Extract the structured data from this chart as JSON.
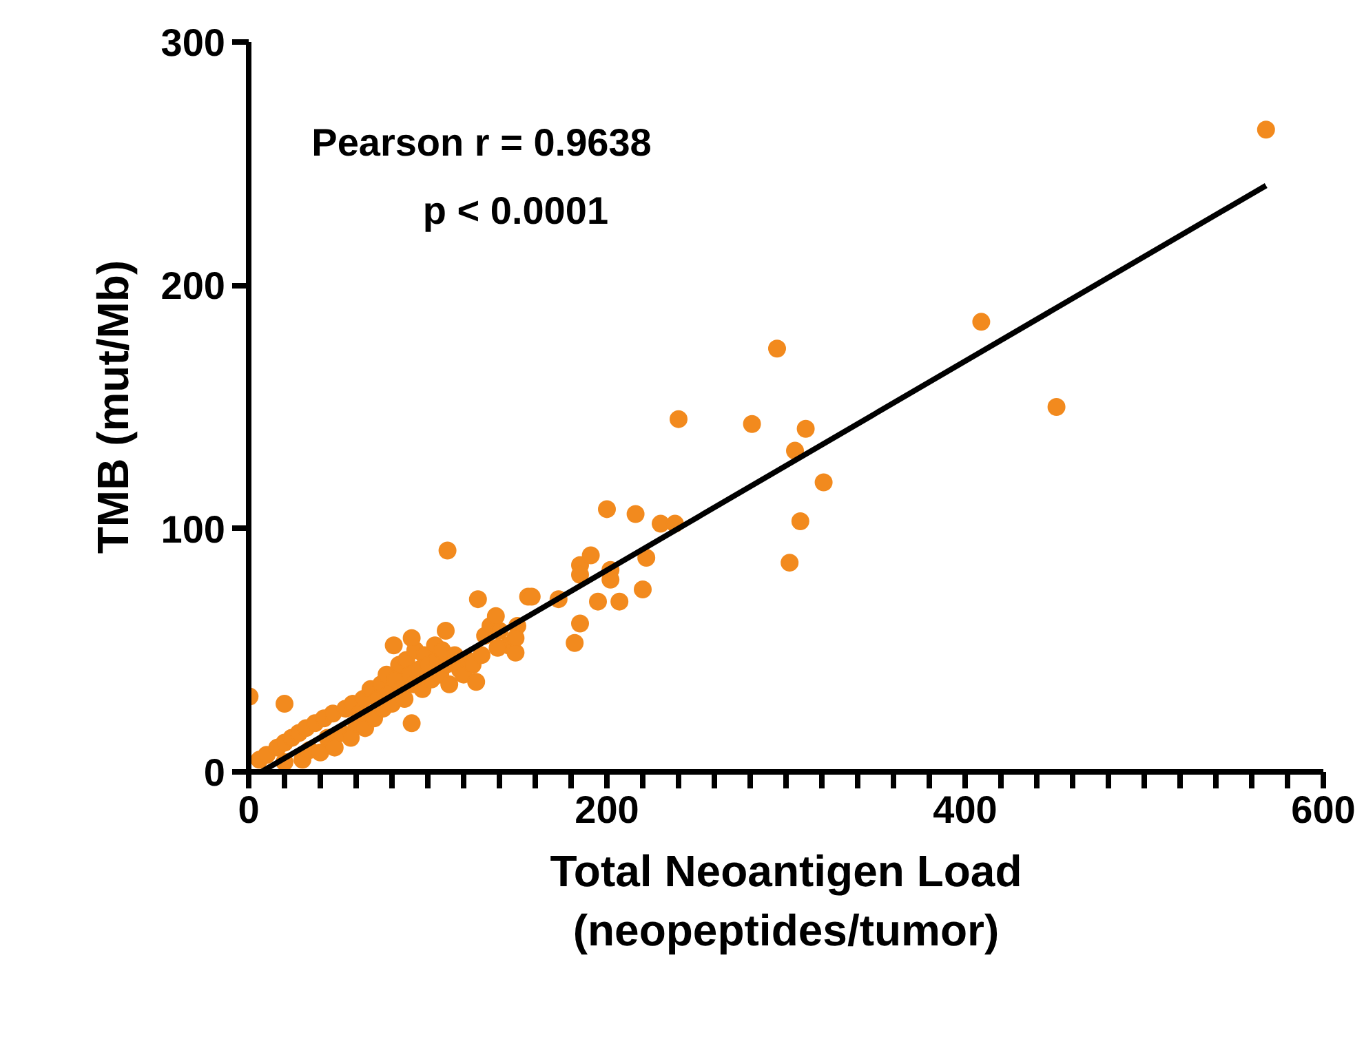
{
  "chart_data": {
    "type": "scatter",
    "xlabel": "Total Neoantigen Load\n(neopeptides/tumor)",
    "ylabel": "TMB (mut/Mb)",
    "annotations": [
      "Pearson r = 0.9638",
      "p < 0.0001"
    ],
    "xlim": [
      0,
      600
    ],
    "ylim": [
      0,
      300
    ],
    "xticks": [
      0,
      {
        "value": 20,
        "label": null
      },
      {
        "value": 40,
        "label": null
      },
      {
        "value": 60,
        "label": null
      },
      {
        "value": 80,
        "label": null
      },
      {
        "value": 100,
        "label": null
      },
      {
        "value": 120,
        "label": null
      },
      {
        "value": 140,
        "label": null
      },
      {
        "value": 160,
        "label": null
      },
      {
        "value": 180,
        "label": null
      },
      200,
      {
        "value": 220,
        "label": null
      },
      {
        "value": 240,
        "label": null
      },
      {
        "value": 260,
        "label": null
      },
      {
        "value": 280,
        "label": null
      },
      {
        "value": 300,
        "label": null
      },
      {
        "value": 320,
        "label": null
      },
      {
        "value": 340,
        "label": null
      },
      {
        "value": 360,
        "label": null
      },
      {
        "value": 380,
        "label": null
      },
      400,
      {
        "value": 420,
        "label": null
      },
      {
        "value": 440,
        "label": null
      },
      {
        "value": 460,
        "label": null
      },
      {
        "value": 480,
        "label": null
      },
      {
        "value": 500,
        "label": null
      },
      {
        "value": 520,
        "label": null
      },
      {
        "value": 540,
        "label": null
      },
      {
        "value": 560,
        "label": null
      },
      {
        "value": 580,
        "label": null
      },
      600
    ],
    "yticks": [
      0,
      100,
      200,
      300
    ],
    "grid": false,
    "series": [
      {
        "color": "#f28a1e",
        "marker": "circle",
        "x": [
          6,
          10,
          16,
          20,
          20,
          24,
          28,
          30,
          32,
          34,
          37,
          40,
          42,
          44,
          47,
          48,
          52,
          54,
          57,
          58,
          60,
          62,
          64,
          65,
          68,
          70,
          72,
          74,
          75,
          77,
          78,
          80,
          82,
          84,
          85,
          87,
          88,
          90,
          92,
          93,
          95,
          97,
          98,
          100,
          102,
          104,
          105,
          107,
          108,
          110,
          112,
          115,
          118,
          120,
          122,
          125,
          130,
          132,
          135,
          140,
          145,
          150,
          0.5,
          20,
          91,
          81,
          91,
          110,
          111,
          127,
          128,
          138,
          139,
          149,
          149,
          156,
          158,
          173,
          182,
          185,
          185,
          185,
          191,
          195,
          202,
          202,
          207,
          200,
          216,
          220,
          222,
          230,
          238,
          240,
          281,
          295,
          302,
          305,
          308,
          311,
          321,
          409,
          451,
          568
        ],
        "values": [
          5,
          7,
          10,
          4,
          12,
          14,
          16,
          5,
          18,
          9,
          20,
          8,
          22,
          14,
          24,
          10,
          16,
          26,
          14,
          28,
          20,
          24,
          30,
          18,
          34,
          22,
          30,
          36,
          26,
          40,
          32,
          28,
          38,
          44,
          34,
          30,
          46,
          40,
          36,
          50,
          42,
          34,
          48,
          44,
          38,
          52,
          46,
          40,
          50,
          44,
          36,
          48,
          42,
          40,
          46,
          44,
          48,
          56,
          60,
          58,
          52,
          60,
          31,
          28,
          20,
          52,
          55,
          58,
          91,
          37,
          71,
          64,
          51,
          49,
          55,
          72,
          72,
          71,
          53,
          61,
          85,
          81,
          89,
          70,
          83,
          79,
          70,
          108,
          106,
          75,
          88,
          102,
          102,
          145,
          143,
          174,
          86,
          132,
          103,
          141,
          119,
          185,
          150,
          264
        ]
      },
      {
        "type": "line",
        "marker": "none",
        "color": "#000000",
        "x": [
          7,
          568
        ],
        "values": [
          0,
          241
        ]
      }
    ]
  }
}
